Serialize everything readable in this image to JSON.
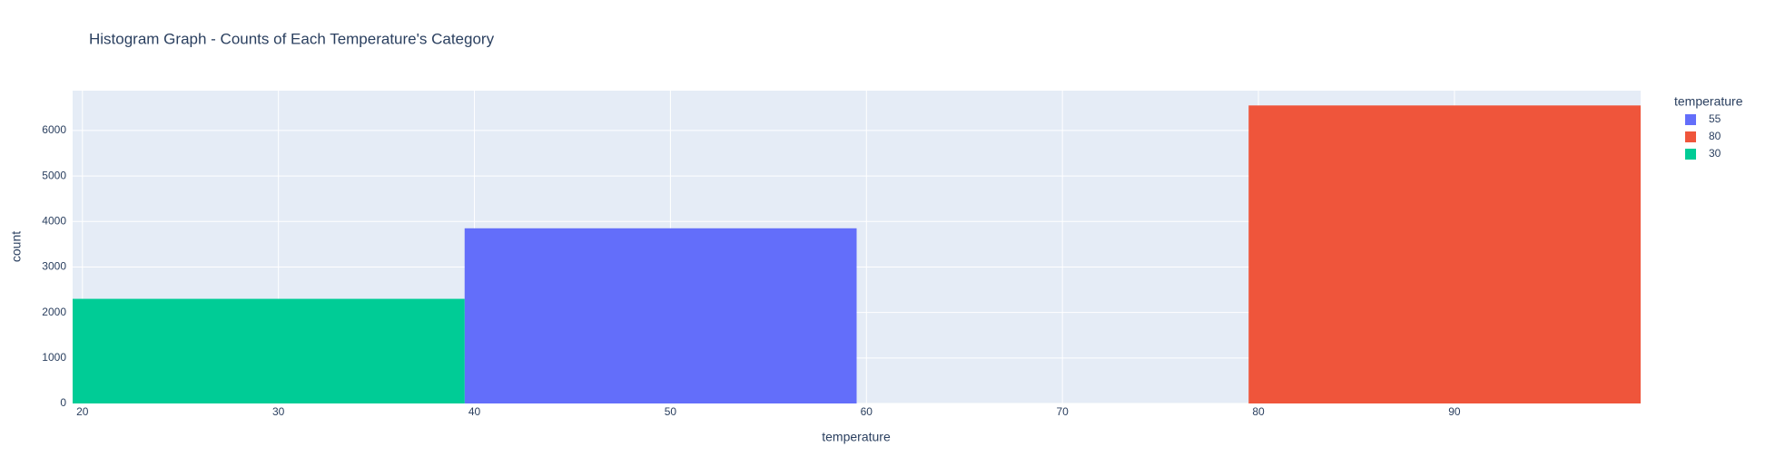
{
  "chart_data": {
    "type": "histogram",
    "title": "Histogram Graph - Counts of Each Temperature's Category",
    "x_label": "temperature",
    "y_label": "count",
    "legend_title": "temperature",
    "series": [
      {
        "name": "55",
        "color": "#636efa",
        "bins": [
          39.5,
          59.5
        ],
        "values": [
          3850
        ]
      },
      {
        "name": "80",
        "color": "#ef553b",
        "bins": [
          79.5,
          99.5
        ],
        "values": [
          6550
        ]
      },
      {
        "name": "30",
        "color": "#00cc96",
        "bins": [
          19.5,
          39.5
        ],
        "values": [
          2300
        ]
      }
    ],
    "xlim": [
      19.5,
      99.5
    ],
    "xticks": [
      20,
      30,
      40,
      50,
      60,
      70,
      80,
      90
    ],
    "ylim": [
      0,
      6875
    ],
    "yticks": [
      0,
      1000,
      2000,
      3000,
      4000,
      5000,
      6000
    ],
    "grid": true,
    "legend": "right",
    "background": "#e5ecf6"
  }
}
